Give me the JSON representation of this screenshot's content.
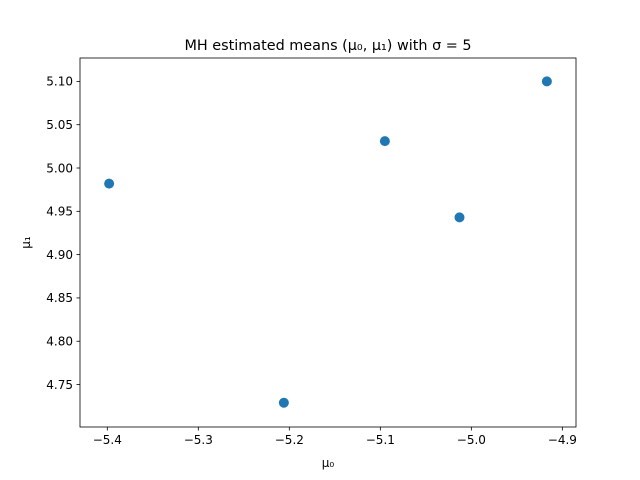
{
  "chart_data": {
    "type": "scatter",
    "title": "MH estimated means (μ₀, μ₁) with σ = 5",
    "xlabel": "μ₀",
    "ylabel": "μ₁",
    "xlim": [
      -5.43,
      -4.885
    ],
    "ylim": [
      4.701,
      5.127
    ],
    "xticks": [
      -5.4,
      -5.3,
      -5.2,
      -5.1,
      -5.0,
      -4.9
    ],
    "xtick_labels": [
      "−5.4",
      "−5.3",
      "−5.2",
      "−5.1",
      "−5.0",
      "−4.9"
    ],
    "yticks": [
      4.75,
      4.8,
      4.85,
      4.9,
      4.95,
      5.0,
      5.05,
      5.1
    ],
    "ytick_labels": [
      "4.75",
      "4.80",
      "4.85",
      "4.90",
      "4.95",
      "5.00",
      "5.05",
      "5.10"
    ],
    "grid": false,
    "color": "#1f77b4",
    "points": [
      {
        "x": -5.398,
        "y": 4.982
      },
      {
        "x": -5.206,
        "y": 4.729
      },
      {
        "x": -5.095,
        "y": 5.031
      },
      {
        "x": -5.013,
        "y": 4.943
      },
      {
        "x": -4.917,
        "y": 5.1
      }
    ]
  }
}
